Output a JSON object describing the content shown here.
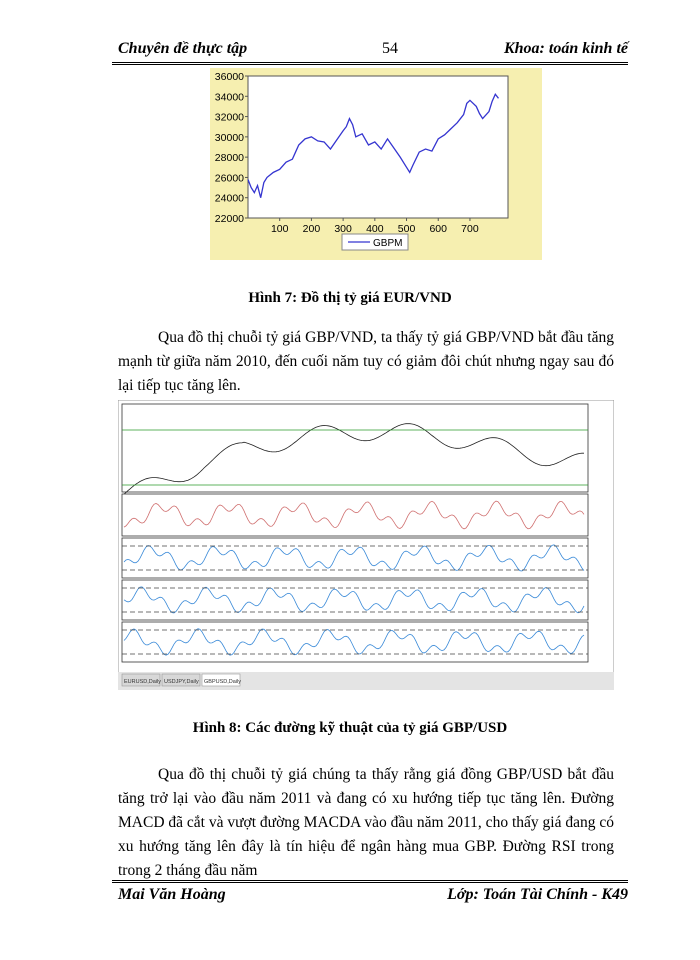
{
  "header": {
    "left": "Chuyên đề thực tập",
    "page": "54",
    "right": "Khoa: toán kinh tế"
  },
  "chart_data": {
    "type": "line",
    "x": [
      0,
      10,
      20,
      30,
      40,
      50,
      60,
      80,
      100,
      120,
      140,
      150,
      160,
      180,
      200,
      220,
      240,
      260,
      280,
      300,
      310,
      320,
      330,
      340,
      360,
      380,
      400,
      420,
      440,
      460,
      480,
      500,
      510,
      520,
      540,
      560,
      580,
      600,
      620,
      640,
      660,
      680,
      690,
      700,
      720,
      730,
      740,
      760,
      770,
      780,
      790
    ],
    "series": [
      {
        "name": "GBPM",
        "color": "#3535d0",
        "values": [
          25800,
          25000,
          24500,
          25200,
          24000,
          25500,
          26000,
          26500,
          26800,
          27500,
          27800,
          28500,
          29200,
          29800,
          30000,
          29600,
          29500,
          28800,
          29700,
          30600,
          31000,
          31800,
          31200,
          30000,
          30300,
          29200,
          29500,
          28800,
          29800,
          28900,
          28000,
          27000,
          26500,
          27200,
          28500,
          28800,
          28600,
          29800,
          30200,
          30800,
          31400,
          32200,
          33300,
          33600,
          33000,
          32300,
          31800,
          32500,
          33500,
          34200,
          33800
        ]
      }
    ],
    "xlim": [
      0,
      820
    ],
    "xticks": [
      100,
      200,
      300,
      400,
      500,
      600,
      700
    ],
    "ylim": [
      22000,
      36000
    ],
    "yticks": [
      22000,
      24000,
      26000,
      28000,
      30000,
      32000,
      34000,
      36000
    ]
  },
  "figure_7_caption": "Hình 7: Đồ thị tỷ giá EUR/VND",
  "paragraph_1": "Qua đồ thị chuỗi tỷ giá GBP/VND, ta thấy tỷ giá GBP/VND bắt đầu tăng mạnh từ giữa năm 2010, đến cuối năm tuy có giảm đôi chút nhưng ngay sau đó lại tiếp tục tăng lên.",
  "figure_8": {
    "tabs": [
      "EURUSD,Daily",
      "USDJPY,Daily",
      "GBPUSD,Daily"
    ]
  },
  "figure_8_caption": "Hình 8: Các đường kỹ thuật của tỷ giá GBP/USD",
  "paragraph_2": "Qua đồ thị chuỗi tỷ giá chúng ta thấy rằng giá đồng GBP/USD bắt đầu tăng trở lại vào đầu năm 2011 và đang có xu hướng tiếp tục tăng lên. Đường MACD đã cắt và vượt đường MACDA vào đầu năm 2011, cho thấy giá đang có xu hướng tăng lên đây là tín hiệu để ngân hàng mua GBP. Đường RSI trong trong 2 tháng đầu năm",
  "footer": {
    "left": "Mai Văn Hoàng",
    "right": "Lớp: Toán Tài Chính - K49"
  }
}
